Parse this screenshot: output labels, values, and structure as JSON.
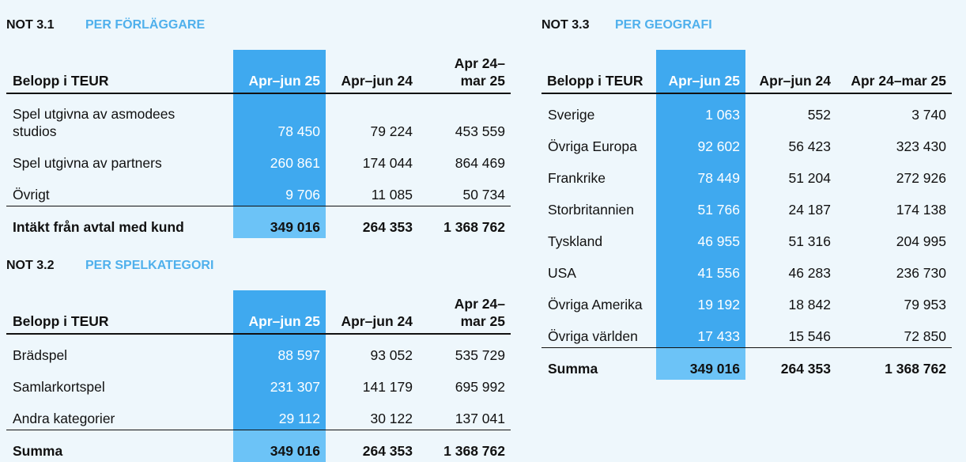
{
  "note31": {
    "number": "NOT 3.1",
    "title": "PER FÖRLÄGGARE",
    "headers": [
      "Belopp i TEUR",
      "Apr–jun 25",
      "Apr–jun 24",
      "Apr 24–\nmar 25"
    ],
    "rows": [
      {
        "label": "Spel utgivna av asmodees studios",
        "values": [
          "78 450",
          "79 224",
          "453 559"
        ]
      },
      {
        "label": "Spel utgivna av partners",
        "values": [
          "260 861",
          "174 044",
          "864 469"
        ]
      },
      {
        "label": "Övrigt",
        "values": [
          "9 706",
          "11 085",
          "50 734"
        ]
      }
    ],
    "total": {
      "label": "Intäkt från avtal med kund",
      "values": [
        "349 016",
        "264 353",
        "1 368 762"
      ]
    }
  },
  "note32": {
    "number": "NOT 3.2",
    "title": "PER SPELKATEGORI",
    "headers": [
      "Belopp i TEUR",
      "Apr–jun 25",
      "Apr–jun 24",
      "Apr 24–\nmar 25"
    ],
    "rows": [
      {
        "label": "Brädspel",
        "values": [
          "88 597",
          "93 052",
          "535 729"
        ]
      },
      {
        "label": "Samlarkortspel",
        "values": [
          "231 307",
          "141 179",
          "695 992"
        ]
      },
      {
        "label": "Andra kategorier",
        "values": [
          "29 112",
          "30 122",
          "137 041"
        ]
      }
    ],
    "total": {
      "label": "Summa",
      "values": [
        "349 016",
        "264 353",
        "1 368 762"
      ]
    }
  },
  "note33": {
    "number": "NOT 3.3",
    "title": "PER GEOGRAFI",
    "headers": [
      "Belopp i TEUR",
      "Apr–jun 25",
      "Apr–jun 24",
      "Apr 24–mar 25"
    ],
    "rows": [
      {
        "label": "Sverige",
        "values": [
          "1 063",
          "552",
          "3 740"
        ]
      },
      {
        "label": "Övriga Europa",
        "values": [
          "92 602",
          "56 423",
          "323 430"
        ]
      },
      {
        "label": "Frankrike",
        "values": [
          "78 449",
          "51 204",
          "272 926"
        ]
      },
      {
        "label": "Storbritannien",
        "values": [
          "51 766",
          "24 187",
          "174 138"
        ]
      },
      {
        "label": "Tyskland",
        "values": [
          "46 955",
          "51 316",
          "204 995"
        ]
      },
      {
        "label": "USA",
        "values": [
          "41 556",
          "46 283",
          "236 730"
        ]
      },
      {
        "label": "Övriga Amerika",
        "values": [
          "19 192",
          "18 842",
          "79 953"
        ]
      },
      {
        "label": "Övriga världen",
        "values": [
          "17 433",
          "15 546",
          "72 850"
        ]
      }
    ],
    "total": {
      "label": "Summa",
      "values": [
        "349 016",
        "264 353",
        "1 368 762"
      ]
    }
  },
  "colors": {
    "accent": "#4fb0ec",
    "highlight": "#3fa9ef",
    "highlight_total": "#6cc3f7",
    "background": "#eef7fc"
  }
}
